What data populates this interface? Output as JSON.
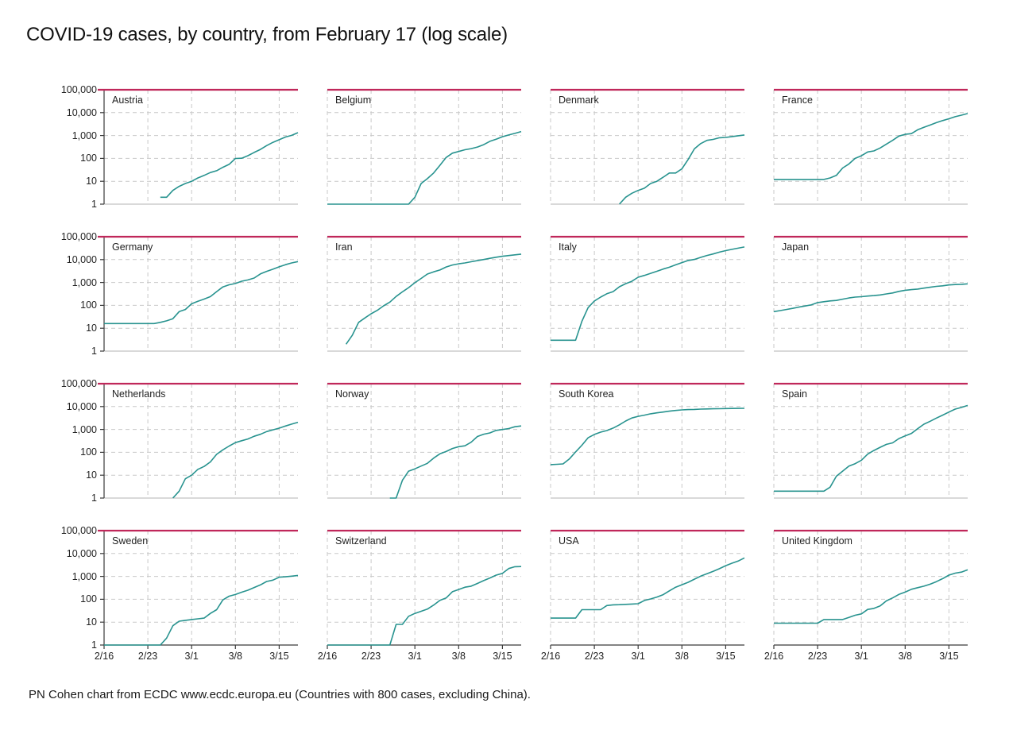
{
  "page": {
    "title": "COVID-19 cases, by country, from February 17 (log scale)",
    "footer": "PN Cohen chart from ECDC www.ecdc.europa.eu (Countries with 800 cases, excluding China)."
  },
  "colors": {
    "line_teal": "#28938f",
    "refline_red": "#c0275a",
    "grid_gray": "#c9c9c9",
    "axis_dark": "#3a3a3a",
    "axis_light": "#b3b3b3",
    "text": "#1a1a1a"
  },
  "chart_data": {
    "type": "line",
    "layout": "small-multiples-4x4",
    "y_scale": "log10",
    "title": "COVID-19 cases, by country, from February 17 (log scale)",
    "x_start_date": "2/16",
    "x_domain_days": [
      0,
      31
    ],
    "x_tick_days": [
      0,
      7,
      14,
      21,
      28
    ],
    "x_tick_labels": [
      "2/16",
      "2/23",
      "3/1",
      "3/8",
      "3/15"
    ],
    "y_ticks": [
      1,
      10,
      100,
      1000,
      10000,
      100000
    ],
    "y_tick_labels": [
      "1",
      "10",
      "100",
      "1,000",
      "10,000",
      "100,000"
    ],
    "reference_line_value": 100000,
    "grid": "dashed",
    "panels": [
      {
        "name": "Austria",
        "start_day": 9,
        "values": [
          2,
          2,
          4,
          6,
          8,
          10,
          14,
          18,
          24,
          29,
          41,
          55,
          99,
          102,
          131,
          182,
          246,
          361,
          504,
          655,
          860,
          1016,
          1332
        ]
      },
      {
        "name": "Belgium",
        "start_day": 0,
        "values": [
          1,
          1,
          1,
          1,
          1,
          1,
          1,
          1,
          1,
          1,
          1,
          1,
          1,
          1,
          2,
          8,
          13,
          23,
          50,
          109,
          169,
          200,
          239,
          267,
          314,
          399,
          559,
          689,
          886,
          1058,
          1243,
          1486
        ]
      },
      {
        "name": "Denmark",
        "start_day": 11,
        "values": [
          1,
          2,
          3,
          4,
          5,
          8,
          10,
          15,
          23,
          23,
          35,
          90,
          262,
          442,
          615,
          674,
          801,
          827,
          898,
          977,
          1057
        ]
      },
      {
        "name": "France",
        "start_day": 0,
        "values": [
          12,
          12,
          12,
          12,
          12,
          12,
          12,
          12,
          12,
          14,
          18,
          38,
          57,
          100,
          130,
          191,
          212,
          285,
          423,
          613,
          949,
          1126,
          1209,
          1784,
          2281,
          2876,
          3661,
          4499,
          5423,
          6633,
          7730,
          9134
        ]
      },
      {
        "name": "Germany",
        "start_day": 0,
        "values": [
          16,
          16,
          16,
          16,
          16,
          16,
          16,
          16,
          16,
          18,
          21,
          26,
          53,
          66,
          117,
          150,
          188,
          240,
          400,
          639,
          795,
          902,
          1139,
          1296,
          1567,
          2369,
          3062,
          3795,
          4838,
          6012,
          7156,
          8198
        ]
      },
      {
        "name": "Iran",
        "start_day": 3,
        "values": [
          2,
          5,
          18,
          28,
          43,
          61,
          95,
          139,
          245,
          388,
          593,
          978,
          1501,
          2336,
          2922,
          3513,
          4747,
          5823,
          6566,
          7161,
          8042,
          9000,
          10075,
          11364,
          12729,
          13938,
          14991,
          16169,
          17361
        ]
      },
      {
        "name": "Italy",
        "start_day": 0,
        "values": [
          3,
          3,
          3,
          3,
          3,
          20,
          79,
          155,
          229,
          322,
          400,
          650,
          888,
          1128,
          1694,
          2036,
          2502,
          3089,
          3858,
          4636,
          5883,
          7375,
          9172,
          10149,
          12462,
          15113,
          17660,
          21157,
          24747,
          27980,
          31506,
          35713
        ]
      },
      {
        "name": "Japan",
        "start_day": 0,
        "values": [
          53,
          59,
          66,
          74,
          84,
          94,
          105,
          132,
          144,
          156,
          164,
          186,
          210,
          230,
          239,
          254,
          268,
          284,
          317,
          349,
          408,
          455,
          488,
          514,
          568,
          620,
          675,
          716,
          780,
          814,
          829,
          873
        ]
      },
      {
        "name": "Netherlands",
        "start_day": 11,
        "values": [
          1,
          2,
          7,
          10,
          18,
          24,
          38,
          82,
          128,
          188,
          265,
          321,
          382,
          503,
          614,
          804,
          959,
          1135,
          1413,
          1705,
          2051
        ]
      },
      {
        "name": "Norway",
        "start_day": 10,
        "values": [
          1,
          1,
          6,
          15,
          19,
          25,
          33,
          56,
          86,
          108,
          147,
          176,
          192,
          277,
          489,
          621,
          702,
          907,
          996,
          1090,
          1308,
          1423
        ]
      },
      {
        "name": "South Korea",
        "start_day": 0,
        "values": [
          29,
          30,
          31,
          51,
          104,
          204,
          433,
          602,
          763,
          893,
          1146,
          1595,
          2337,
          3150,
          3736,
          4212,
          4812,
          5328,
          5766,
          6284,
          6767,
          7134,
          7382,
          7513,
          7755,
          7869,
          7979,
          8086,
          8162,
          8236,
          8320,
          8413
        ]
      },
      {
        "name": "Spain",
        "start_day": 0,
        "values": [
          2,
          2,
          2,
          2,
          2,
          2,
          2,
          2,
          2,
          3,
          9,
          15,
          25,
          32,
          45,
          83,
          120,
          165,
          222,
          259,
          400,
          525,
          673,
          1073,
          1695,
          2277,
          3146,
          4231,
          5753,
          7753,
          9191,
          11178
        ]
      },
      {
        "name": "Sweden",
        "start_day": 0,
        "values": [
          1,
          1,
          1,
          1,
          1,
          1,
          1,
          1,
          1,
          1,
          2,
          7,
          11,
          12,
          13,
          14,
          15,
          24,
          35,
          94,
          137,
          161,
          203,
          248,
          326,
          424,
          599,
          687,
          924,
          961,
          1022,
          1103
        ]
      },
      {
        "name": "Switzerland",
        "start_day": 0,
        "values": [
          1,
          1,
          1,
          1,
          1,
          1,
          1,
          1,
          1,
          1,
          1,
          8,
          8,
          18,
          24,
          30,
          37,
          56,
          90,
          114,
          214,
          268,
          337,
          374,
          491,
          652,
          854,
          1139,
          1359,
          2200,
          2650,
          2700
        ]
      },
      {
        "name": "USA",
        "start_day": 0,
        "values": [
          15,
          15,
          15,
          15,
          15,
          35,
          35,
          35,
          35,
          53,
          57,
          58,
          60,
          62,
          64,
          89,
          103,
          125,
          159,
          233,
          338,
          433,
          554,
          754,
          1025,
          1312,
          1663,
          2174,
          2951,
          3774,
          4661,
          6427
        ]
      },
      {
        "name": "United Kingdom",
        "start_day": 0,
        "values": [
          9,
          9,
          9,
          9,
          9,
          9,
          9,
          9,
          13,
          13,
          13,
          13,
          16,
          20,
          23,
          36,
          40,
          51,
          85,
          115,
          163,
          206,
          273,
          321,
          373,
          456,
          590,
          798,
          1140,
          1391,
          1543,
          1950
        ]
      }
    ]
  }
}
